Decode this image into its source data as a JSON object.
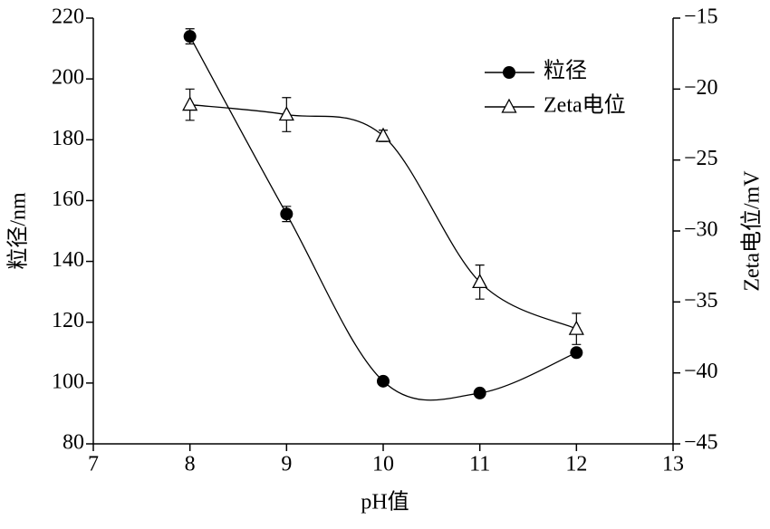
{
  "chart_data": {
    "type": "line",
    "x_label": "pH值",
    "y_label": "粒径/nm",
    "y2_label": "Zeta电位/mV",
    "x": [
      8,
      9,
      10,
      11,
      12
    ],
    "xlim": [
      7,
      13
    ],
    "xticks": [
      7,
      8,
      9,
      10,
      11,
      12,
      13
    ],
    "ylim": [
      80,
      220
    ],
    "yticks": [
      80,
      100,
      120,
      140,
      160,
      180,
      200,
      220
    ],
    "y2lim": [
      -45,
      -15
    ],
    "y2ticks": [
      {
        "value": -45,
        "label": "−45"
      },
      {
        "value": -40,
        "label": "−40"
      },
      {
        "value": -35,
        "label": "−35"
      },
      {
        "value": -30,
        "label": "−30"
      },
      {
        "value": -25,
        "label": "−25"
      },
      {
        "value": -20,
        "label": "−20"
      },
      {
        "value": -15,
        "label": "−15"
      }
    ],
    "legend": "upper right",
    "series": [
      {
        "name": "粒径",
        "color": "#000000",
        "marker": "filled-circle",
        "values": [
          214,
          155.6,
          100.6,
          96.7,
          110
        ],
        "errors": [
          2.5,
          2.5,
          1,
          1,
          1
        ]
      },
      {
        "name": "Zeta电位",
        "color": "#000000",
        "marker": "open-triangle",
        "axis": "y2",
        "values": [
          -21.1,
          -21.8,
          -23.3,
          -33.6,
          -36.9
        ],
        "errors": [
          1.1,
          1.2,
          0.4,
          1.2,
          1.1
        ]
      }
    ]
  }
}
